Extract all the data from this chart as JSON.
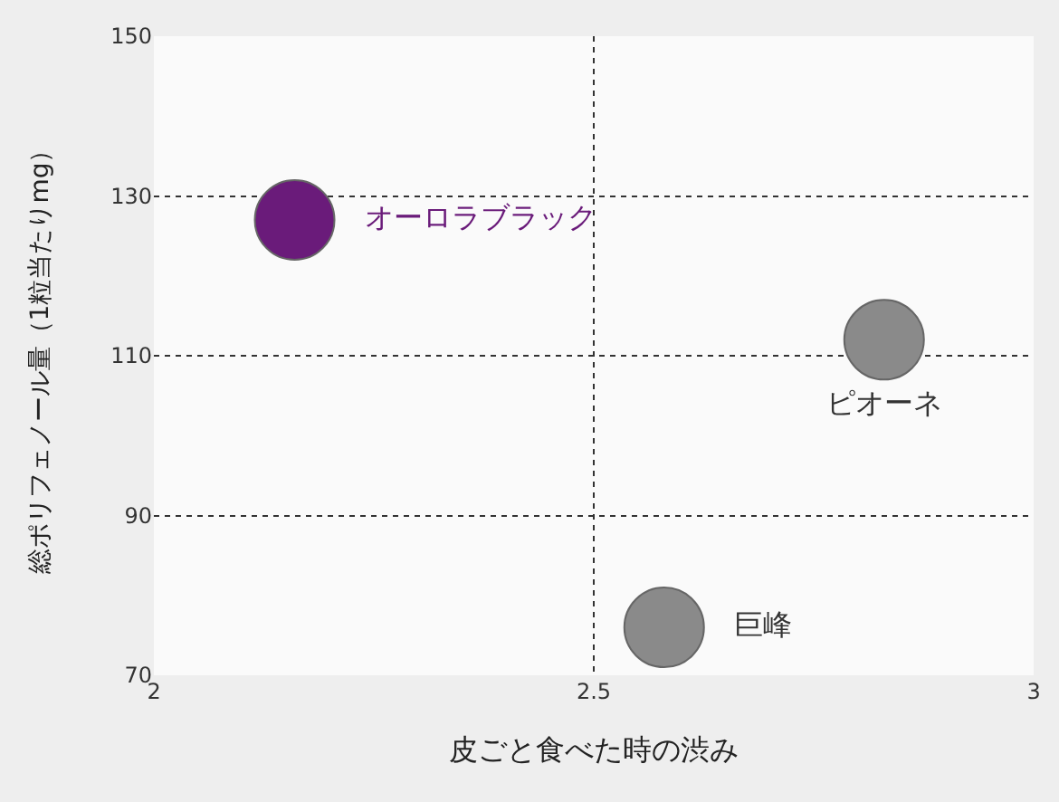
{
  "chart_data": {
    "type": "scatter",
    "xlabel": "皮ごと食べた時の渋み",
    "ylabel": "総ポリフェノール量（1粒当たりmg）",
    "series": [
      {
        "name": "オーロラブラック",
        "color": "#6a1b7a",
        "x": [
          2.16
        ],
        "values": [
          127
        ]
      },
      {
        "name": "ピオーネ",
        "color": "#8a8a8a",
        "x": [
          2.83
        ],
        "values": [
          112
        ]
      },
      {
        "name": "巨峰",
        "color": "#8a8a8a",
        "x": [
          2.58
        ],
        "values": [
          76
        ]
      }
    ],
    "xlim": [
      2,
      3
    ],
    "xticks": [
      2,
      2.5,
      3
    ],
    "ylim": [
      70,
      150
    ],
    "yticks": [
      70,
      90,
      110,
      130,
      150
    ],
    "grid": true,
    "legend": false,
    "marker": "circle"
  }
}
